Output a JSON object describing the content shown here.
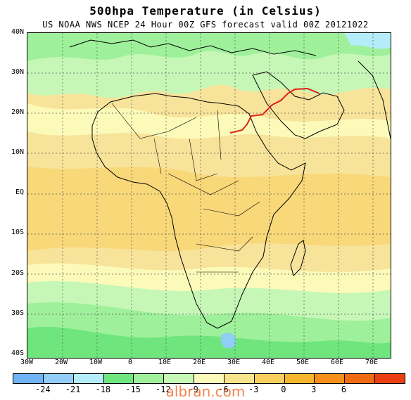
{
  "title": "500hpa  Temperature (in Celsius)",
  "subtitle": "US NOAA NWS NCEP 24 Hour 00Z GFS forecast valid 00Z 20121022",
  "axes": {
    "lat_labels": [
      "40N",
      "30N",
      "20N",
      "10N",
      "EQ",
      "10S",
      "20S",
      "30S",
      "40S"
    ],
    "lon_labels": [
      "30W",
      "20W",
      "10W",
      "0",
      "10E",
      "20E",
      "30E",
      "40E",
      "50E",
      "60E",
      "70E"
    ]
  },
  "colorbar": {
    "colors": [
      "#6fb2f5",
      "#90cdf7",
      "#b4ecf9",
      "#6ee67d",
      "#9ef09a",
      "#c6f7b7",
      "#fbfab8",
      "#f9e48e",
      "#f8cf5f",
      "#f7b52d",
      "#f58f19",
      "#ef6a10",
      "#ea3e10"
    ],
    "labels": [
      "-24",
      "-21",
      "-18",
      "-15",
      "-12",
      "-9",
      "-6",
      "-3",
      "0",
      "3",
      "6"
    ]
  },
  "map": {
    "highlight_contour_color": "#e0201a",
    "coastline_color": "#000000",
    "grid_color": "#555555"
  },
  "watermark": "albran.com"
}
